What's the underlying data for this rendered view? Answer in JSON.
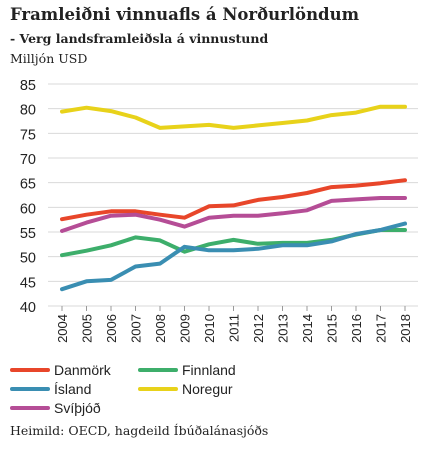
{
  "title": "Framleiðni vinnuafls á Norðurlöndum",
  "subtitle": "- Verg landsframleiðsla á vinnustund",
  "unit_label": "Milljón USD",
  "source": "Heimild: OECD, hagdeild Íbúðalánasjóðs",
  "chart_data": {
    "type": "line",
    "title": "Framleiðni vinnuafls á Norðurlöndum",
    "subtitle": "- Verg landsframleiðsla á vinnustund",
    "ylabel": "Milljón USD",
    "xlabel": "",
    "x": [
      "2004",
      "2005",
      "2006",
      "2007",
      "2008",
      "2009",
      "2010",
      "2011",
      "2012",
      "2013",
      "2014",
      "2015",
      "2016",
      "2017",
      "2018"
    ],
    "ylim": [
      40,
      85
    ],
    "yticks": [
      40,
      45,
      50,
      55,
      60,
      65,
      70,
      75,
      80,
      85
    ],
    "grid": true,
    "legend_position": "bottom",
    "series": [
      {
        "name": "Danmörk",
        "color": "#e8462a",
        "values": [
          57.6,
          58.5,
          59.2,
          59.2,
          58.5,
          57.9,
          60.2,
          60.4,
          61.5,
          62.1,
          62.9,
          64.1,
          64.4,
          64.9,
          65.5
        ]
      },
      {
        "name": "Finnland",
        "color": "#3dae6b",
        "values": [
          50.3,
          51.2,
          52.3,
          53.9,
          53.3,
          51.0,
          52.5,
          53.4,
          52.6,
          52.8,
          52.8,
          53.4,
          54.5,
          55.4,
          55.4
        ]
      },
      {
        "name": "Ísland",
        "color": "#3a8eb2",
        "values": [
          43.4,
          45.0,
          45.3,
          48.0,
          48.6,
          52.0,
          51.3,
          51.3,
          51.6,
          52.3,
          52.3,
          53.1,
          54.6,
          55.4,
          56.7
        ]
      },
      {
        "name": "Noregur",
        "color": "#e8d21a",
        "values": [
          79.4,
          80.2,
          79.5,
          78.2,
          76.1,
          76.4,
          76.7,
          76.1,
          76.6,
          77.1,
          77.6,
          78.7,
          79.2,
          80.4,
          80.4
        ]
      },
      {
        "name": "Svíþjóð",
        "color": "#b54d96",
        "values": [
          55.2,
          56.9,
          58.3,
          58.5,
          57.5,
          56.1,
          57.9,
          58.3,
          58.3,
          58.8,
          59.4,
          61.3,
          61.6,
          61.9,
          61.9
        ]
      }
    ]
  }
}
